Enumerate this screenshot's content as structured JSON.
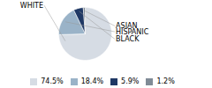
{
  "chart_data": {
    "type": "pie",
    "categories": [
      "WHITE",
      "HISPANIC",
      "BLACK",
      "ASIAN"
    ],
    "values": [
      74.5,
      18.4,
      5.9,
      1.2
    ],
    "value_labels": [
      "74.5%",
      "18.4%",
      "5.9%",
      "1.2%"
    ],
    "colors": [
      "#d6dce4",
      "#9ab3c8",
      "#1f3864",
      "#808b96"
    ],
    "legend": "bottom"
  }
}
